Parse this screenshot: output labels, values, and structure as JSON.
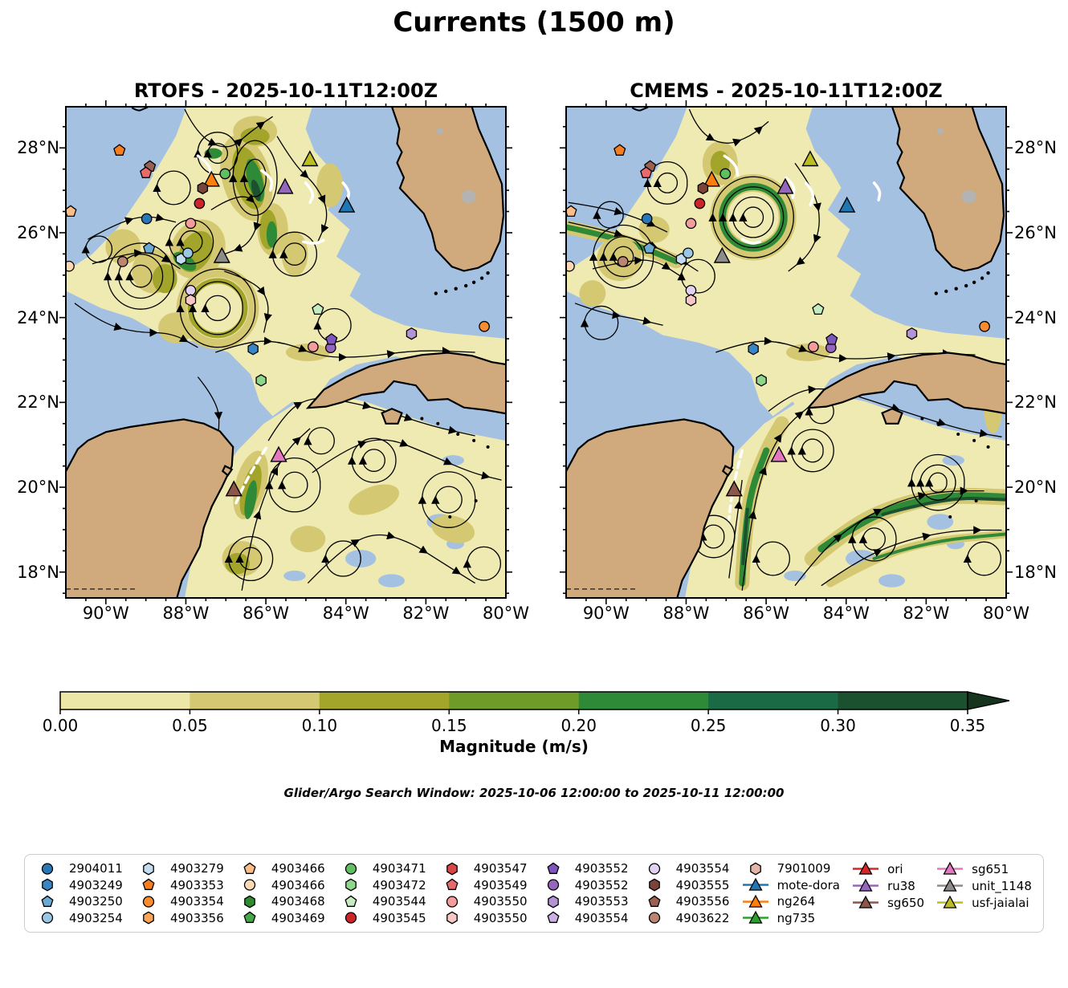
{
  "title": "Currents (1500 m)",
  "subtitle": "Glider/Argo Search Window: 2025-10-06 12:00:00 to 2025-10-11 12:00:00",
  "panels": [
    {
      "title": "RTOFS - 2025-10-11T12:00Z"
    },
    {
      "title": "CMEMS - 2025-10-11T12:00Z"
    }
  ],
  "axes": {
    "lon_ticks": [
      {
        "label": "90°W",
        "lon": 90
      },
      {
        "label": "88°W",
        "lon": 88
      },
      {
        "label": "86°W",
        "lon": 86
      },
      {
        "label": "84°W",
        "lon": 84
      },
      {
        "label": "82°W",
        "lon": 82
      },
      {
        "label": "80°W",
        "lon": 80
      }
    ],
    "lat_ticks": [
      {
        "label": "28°N",
        "lat": 28
      },
      {
        "label": "26°N",
        "lat": 26
      },
      {
        "label": "24°N",
        "lat": 24
      },
      {
        "label": "22°N",
        "lat": 22
      },
      {
        "label": "20°N",
        "lat": 20
      },
      {
        "label": "18°N",
        "lat": 18
      }
    ],
    "lon_range": [
      91.0,
      80.0
    ],
    "lat_range": [
      28.97,
      17.39
    ]
  },
  "colorbar": {
    "label": "Magnitude (m/s)",
    "ticks": [
      "0.00",
      "0.05",
      "0.10",
      "0.15",
      "0.20",
      "0.25",
      "0.30",
      "0.35"
    ],
    "segment_colors": [
      "#ece7a6",
      "#d4c873",
      "#a3a42a",
      "#6f9c28",
      "#2f8a38",
      "#1a6b45",
      "#1c5130"
    ],
    "extend_color": "#14341e",
    "range": [
      0.0,
      0.35
    ]
  },
  "map_colors": {
    "ocean": "#a5c1e2",
    "land": "#d0aa7d",
    "coast": "#000000",
    "lake": "#b3b3b3",
    "field_base": "#efeab1",
    "stream": "#000000",
    "track": "#ffffff"
  },
  "chart_data": {
    "type": "streamline-map",
    "variable": "ocean current magnitude at 1500 m (m/s)",
    "region": "Gulf of Mexico / NW Caribbean, 18-28N, 80-90W",
    "panels": [
      {
        "model": "RTOFS",
        "time": "2025-10-11T12:00Z"
      },
      {
        "model": "CMEMS",
        "time": "2025-10-11T12:00Z"
      }
    ],
    "colorbar_levels": [
      0.0,
      0.05,
      0.1,
      0.15,
      0.2,
      0.25,
      0.3,
      0.35
    ],
    "markers": [
      {
        "id": "4903353",
        "shape": "pentagon",
        "color": "#f57f20",
        "lon": 89.66,
        "lat": 27.94
      },
      {
        "id": "4903556",
        "shape": "pentagon",
        "color": "#9a6152",
        "lon": 88.9,
        "lat": 27.56
      },
      {
        "id": "4903549",
        "shape": "pentagon",
        "color": "#e86a6a",
        "lon": 89.0,
        "lat": 27.41
      },
      {
        "id": "ng264",
        "shape": "triangle",
        "color": "#ff7f0e",
        "lon": 87.36,
        "lat": 27.24
      },
      {
        "id": "4903471",
        "shape": "circle",
        "color": "#5fbf61",
        "lon": 87.02,
        "lat": 27.39
      },
      {
        "id": "ru38",
        "shape": "triangle",
        "color": "#9467bd",
        "lon": 85.52,
        "lat": 27.07
      },
      {
        "id": "usf-jaialai",
        "shape": "triangle",
        "color": "#bcbd22",
        "lon": 84.9,
        "lat": 27.72
      },
      {
        "id": "mote-dora",
        "shape": "triangle",
        "color": "#1f77b4",
        "lon": 83.98,
        "lat": 26.63
      },
      {
        "id": "4903555",
        "shape": "hexagon",
        "color": "#7a4438",
        "lon": 87.58,
        "lat": 27.05
      },
      {
        "id": "4903545",
        "shape": "circle",
        "color": "#cc2529",
        "lon": 87.66,
        "lat": 26.69
      },
      {
        "id": "2904011",
        "shape": "circle",
        "color": "#2878b8",
        "lon": 88.98,
        "lat": 26.33
      },
      {
        "id": "4903550",
        "shape": "circle",
        "color": "#f49c9c",
        "lon": 87.88,
        "lat": 26.22
      },
      {
        "id": "unit_1148",
        "shape": "triangle",
        "color": "#8c8c8c",
        "lon": 87.1,
        "lat": 25.44
      },
      {
        "id": "4903622",
        "shape": "circle",
        "color": "#bb8574",
        "lon": 89.58,
        "lat": 25.32
      },
      {
        "id": "4903250",
        "shape": "pentagon",
        "color": "#6aaad4",
        "lon": 88.92,
        "lat": 25.63
      },
      {
        "id": "4903279",
        "shape": "hexagon",
        "color": "#c3dcef",
        "lon": 88.12,
        "lat": 25.38
      },
      {
        "id": "4903254",
        "shape": "circle",
        "color": "#9cc7e4",
        "lon": 87.95,
        "lat": 25.52
      },
      {
        "id": "4903554",
        "shape": "circle",
        "color": "#e2d2f0",
        "lon": 87.88,
        "lat": 24.64
      },
      {
        "id": "4903550",
        "shape": "hexagon",
        "color": "#f9c6c6",
        "lon": 87.88,
        "lat": 24.41
      },
      {
        "id": "4903544",
        "shape": "pentagon",
        "color": "#c4ecc0",
        "lon": 84.7,
        "lat": 24.19
      },
      {
        "id": "4903553",
        "shape": "hexagon",
        "color": "#b393d4",
        "lon": 82.36,
        "lat": 23.62
      },
      {
        "id": "4903354",
        "shape": "circle",
        "color": "#f78c30",
        "lon": 80.54,
        "lat": 23.79
      },
      {
        "id": "4903249",
        "shape": "hexagon",
        "color": "#3a86c4",
        "lon": 86.32,
        "lat": 23.26
      },
      {
        "id": "4903550",
        "shape": "circle",
        "color": "#f49c9c",
        "lon": 84.82,
        "lat": 23.31
      },
      {
        "id": "4903552",
        "shape": "circle",
        "color": "#9467bd",
        "lon": 84.38,
        "lat": 23.29
      },
      {
        "id": "4903552",
        "shape": "pentagon",
        "color": "#7e57be",
        "lon": 84.36,
        "lat": 23.48
      },
      {
        "id": "4903472",
        "shape": "hexagon",
        "color": "#8fd68c",
        "lon": 86.12,
        "lat": 22.52
      },
      {
        "id": "sg651",
        "shape": "triangle",
        "color": "#e377c2",
        "lon": 85.68,
        "lat": 20.75
      },
      {
        "id": "sg650",
        "shape": "triangle",
        "color": "#8c564b",
        "lon": 86.8,
        "lat": 19.94
      },
      {
        "id": "4903466",
        "shape": "pentagon",
        "color": "#fcbe88",
        "lon": 90.88,
        "lat": 26.5
      },
      {
        "id": "4903466",
        "shape": "circle",
        "color": "#fdd8b4",
        "lon": 90.92,
        "lat": 25.21
      }
    ]
  },
  "legend": {
    "columns": [
      [
        {
          "label": "2904011",
          "shape": "circle",
          "color": "#2878b8"
        },
        {
          "label": "4903249",
          "shape": "hexagon",
          "color": "#3a86c4"
        },
        {
          "label": "4903250",
          "shape": "pentagon",
          "color": "#6aaad4"
        },
        {
          "label": "4903254",
          "shape": "circle",
          "color": "#9cc7e4"
        }
      ],
      [
        {
          "label": "4903279",
          "shape": "hexagon",
          "color": "#c3dcef"
        },
        {
          "label": "4903353",
          "shape": "pentagon",
          "color": "#f57f20"
        },
        {
          "label": "4903354",
          "shape": "circle",
          "color": "#f78c30"
        },
        {
          "label": "4903356",
          "shape": "hexagon",
          "color": "#faa55c"
        }
      ],
      [
        {
          "label": "4903466",
          "shape": "pentagon",
          "color": "#fcbe88"
        },
        {
          "label": "4903466",
          "shape": "circle",
          "color": "#fdd8b4"
        },
        {
          "label": "4903468",
          "shape": "hexagon",
          "color": "#2e8b30"
        },
        {
          "label": "4903469",
          "shape": "pentagon",
          "color": "#44a844"
        }
      ],
      [
        {
          "label": "4903471",
          "shape": "circle",
          "color": "#5fbf61"
        },
        {
          "label": "4903472",
          "shape": "hexagon",
          "color": "#8fd68c"
        },
        {
          "label": "4903544",
          "shape": "pentagon",
          "color": "#c4ecc0"
        },
        {
          "label": "4903545",
          "shape": "circle",
          "color": "#cc2529"
        }
      ],
      [
        {
          "label": "4903547",
          "shape": "hexagon",
          "color": "#d94545"
        },
        {
          "label": "4903549",
          "shape": "pentagon",
          "color": "#e86a6a"
        },
        {
          "label": "4903550",
          "shape": "circle",
          "color": "#f49c9c"
        },
        {
          "label": "4903550",
          "shape": "hexagon",
          "color": "#f9c6c6"
        }
      ],
      [
        {
          "label": "4903552",
          "shape": "pentagon",
          "color": "#7e57be"
        },
        {
          "label": "4903552",
          "shape": "circle",
          "color": "#9467bd"
        },
        {
          "label": "4903553",
          "shape": "hexagon",
          "color": "#b393d4"
        },
        {
          "label": "4903554",
          "shape": "pentagon",
          "color": "#ccb2e4"
        }
      ],
      [
        {
          "label": "4903554",
          "shape": "circle",
          "color": "#e2d2f0"
        },
        {
          "label": "4903555",
          "shape": "hexagon",
          "color": "#7a4438"
        },
        {
          "label": "4903556",
          "shape": "pentagon",
          "color": "#9a6152"
        },
        {
          "label": "4903622",
          "shape": "circle",
          "color": "#bb8574"
        }
      ],
      [
        {
          "label": "7901009",
          "shape": "hexagon",
          "color": "#e3b6a8"
        },
        {
          "label": "mote-dora",
          "shape": "triangle",
          "color": "#1f77b4",
          "line": true
        },
        {
          "label": "ng264",
          "shape": "triangle",
          "color": "#ff7f0e",
          "line": true
        },
        {
          "label": "ng735",
          "shape": "triangle",
          "color": "#2ca02c",
          "line": true
        }
      ],
      [
        {
          "label": "ori",
          "shape": "triangle",
          "color": "#d62728",
          "line": true
        },
        {
          "label": "ru38",
          "shape": "triangle",
          "color": "#9467bd",
          "line": true
        },
        {
          "label": "sg650",
          "shape": "triangle",
          "color": "#8c564b",
          "line": true
        }
      ],
      [
        {
          "label": "sg651",
          "shape": "triangle",
          "color": "#e377c2",
          "line": true
        },
        {
          "label": "unit_1148",
          "shape": "triangle",
          "color": "#8c8c8c",
          "line": true
        },
        {
          "label": "usf-jaialai",
          "shape": "triangle",
          "color": "#bcbd22",
          "line": true
        }
      ]
    ]
  }
}
